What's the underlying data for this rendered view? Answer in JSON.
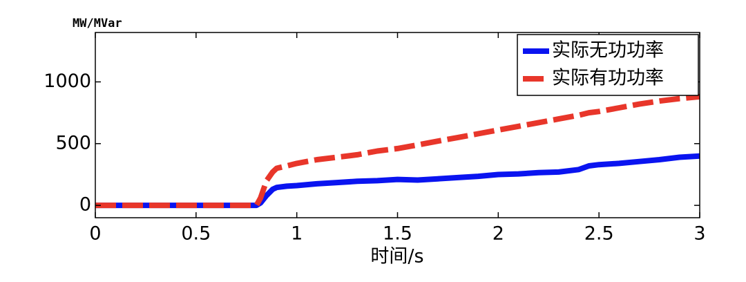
{
  "chart_data": {
    "type": "line",
    "y_label": "MW/MVar",
    "x_label": "时间/s",
    "x": [
      0,
      0.2,
      0.4,
      0.6,
      0.8,
      0.82,
      0.85,
      0.88,
      0.9,
      0.95,
      1.0,
      1.1,
      1.2,
      1.3,
      1.4,
      1.5,
      1.6,
      1.7,
      1.8,
      1.9,
      2.0,
      2.1,
      2.2,
      2.3,
      2.4,
      2.45,
      2.5,
      2.6,
      2.7,
      2.8,
      2.9,
      3.0
    ],
    "series": [
      {
        "name": "实际无功功率",
        "color": "#0a14f0",
        "style": "solid",
        "values": [
          0,
          0,
          0,
          0,
          0,
          20,
          80,
          130,
          145,
          155,
          160,
          175,
          185,
          195,
          200,
          210,
          205,
          215,
          225,
          235,
          250,
          255,
          265,
          270,
          290,
          320,
          330,
          340,
          355,
          370,
          390,
          400
        ]
      },
      {
        "name": "实际有功功率",
        "color": "#e8362a",
        "style": "dashed",
        "values": [
          0,
          0,
          0,
          0,
          0,
          60,
          200,
          270,
          300,
          320,
          340,
          370,
          390,
          410,
          440,
          460,
          490,
          520,
          550,
          580,
          610,
          640,
          670,
          700,
          730,
          750,
          760,
          790,
          820,
          845,
          865,
          880
        ]
      }
    ],
    "xlim": [
      0,
      3
    ],
    "xticks": [
      0,
      0.5,
      1,
      1.5,
      2,
      2.5,
      3
    ],
    "ylim": [
      -100,
      1400
    ],
    "yticks": [
      0,
      500,
      1000
    ],
    "legend": "top-right"
  }
}
